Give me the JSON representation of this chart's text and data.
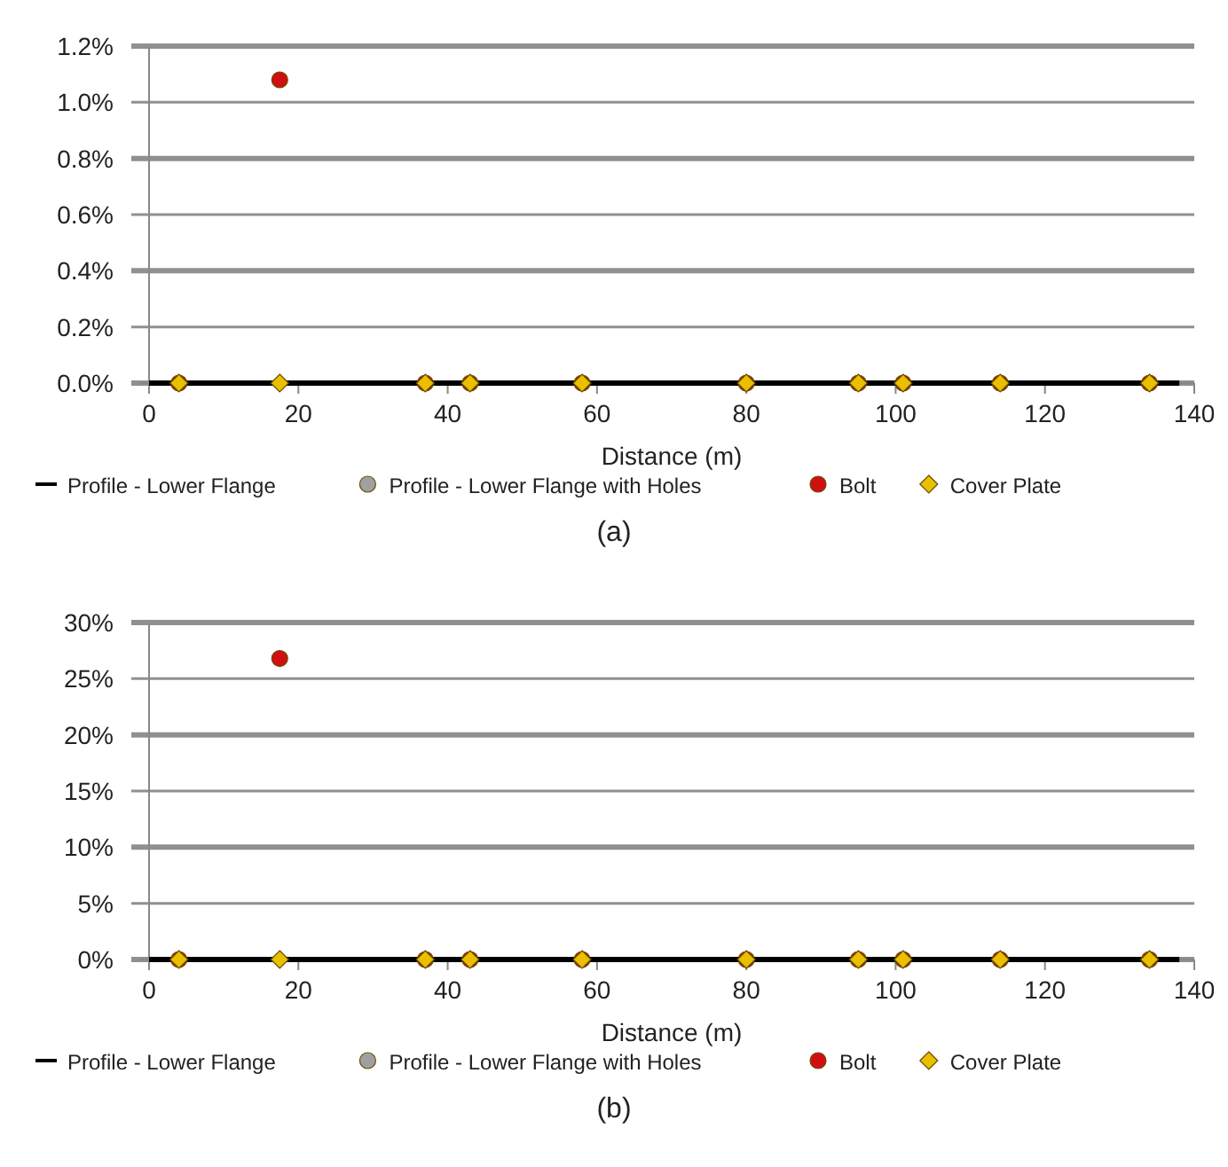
{
  "chart_data": [
    {
      "type": "scatter",
      "xlabel": "Distance (m)",
      "xlim": [
        0,
        140
      ],
      "xticks": [
        0,
        20,
        40,
        60,
        80,
        100,
        120,
        140
      ],
      "ylim": [
        0,
        1.2
      ],
      "yticks": [
        {
          "value": 0,
          "label": "0.0%"
        },
        {
          "value": 0.2,
          "label": "0.2%"
        },
        {
          "value": 0.4,
          "label": "0.4%"
        },
        {
          "value": 0.6,
          "label": "0.6%"
        },
        {
          "value": 0.8,
          "label": "0.8%"
        },
        {
          "value": 1,
          "label": "1.0%"
        },
        {
          "value": 1.2,
          "label": "1.2%"
        }
      ],
      "grid": "y",
      "legend": "bottom",
      "annotations": [
        "(a)"
      ],
      "series": [
        {
          "name": "Profile - Lower Flange",
          "type": "line",
          "marker": "none",
          "color": "#000000",
          "x": [
            0,
            138
          ],
          "values": [
            0,
            0
          ]
        },
        {
          "name": "Profile - Lower Flange with Holes",
          "marker": "circle",
          "color": "#a0a0a0"
        },
        {
          "name": "Bolt",
          "marker": "circle",
          "color": "#d01010",
          "x": [
            4,
            17.5,
            37,
            43,
            58,
            80,
            95,
            101,
            114,
            134
          ],
          "values": [
            0,
            1.08,
            0,
            0,
            0,
            0,
            0,
            0,
            0,
            0
          ]
        },
        {
          "name": "Cover Plate",
          "marker": "diamond",
          "color": "#e8c000",
          "x": [
            4,
            17.5,
            37,
            43,
            58,
            80,
            95,
            101,
            114,
            134
          ],
          "values": [
            0,
            0,
            0,
            0,
            0,
            0,
            0,
            0,
            0,
            0
          ]
        }
      ]
    },
    {
      "type": "scatter",
      "xlabel": "Distance (m)",
      "xlim": [
        0,
        140
      ],
      "xticks": [
        0,
        20,
        40,
        60,
        80,
        100,
        120,
        140
      ],
      "ylim": [
        0,
        30
      ],
      "yticks": [
        {
          "value": 0,
          "label": "0%"
        },
        {
          "value": 5,
          "label": "5%"
        },
        {
          "value": 10,
          "label": "10%"
        },
        {
          "value": 15,
          "label": "15%"
        },
        {
          "value": 20,
          "label": "20%"
        },
        {
          "value": 25,
          "label": "25%"
        },
        {
          "value": 30,
          "label": "30%"
        }
      ],
      "grid": "y",
      "legend": "bottom",
      "annotations": [
        "(b)"
      ],
      "series": [
        {
          "name": "Profile - Lower Flange",
          "type": "line",
          "marker": "none",
          "color": "#000000",
          "x": [
            0,
            138
          ],
          "values": [
            0,
            0
          ]
        },
        {
          "name": "Profile - Lower Flange with Holes",
          "marker": "circle",
          "color": "#a0a0a0"
        },
        {
          "name": "Bolt",
          "marker": "circle",
          "color": "#d01010",
          "x": [
            4,
            17.5,
            37,
            43,
            58,
            80,
            95,
            101,
            114,
            134
          ],
          "values": [
            0,
            26.8,
            0,
            0,
            0,
            0,
            0,
            0,
            0,
            0
          ]
        },
        {
          "name": "Cover Plate",
          "marker": "diamond",
          "color": "#e8c000",
          "x": [
            4,
            17.5,
            37,
            43,
            58,
            80,
            95,
            101,
            114,
            134
          ],
          "values": [
            0,
            0,
            0,
            0,
            0,
            0,
            0,
            0,
            0,
            0
          ]
        }
      ]
    }
  ]
}
